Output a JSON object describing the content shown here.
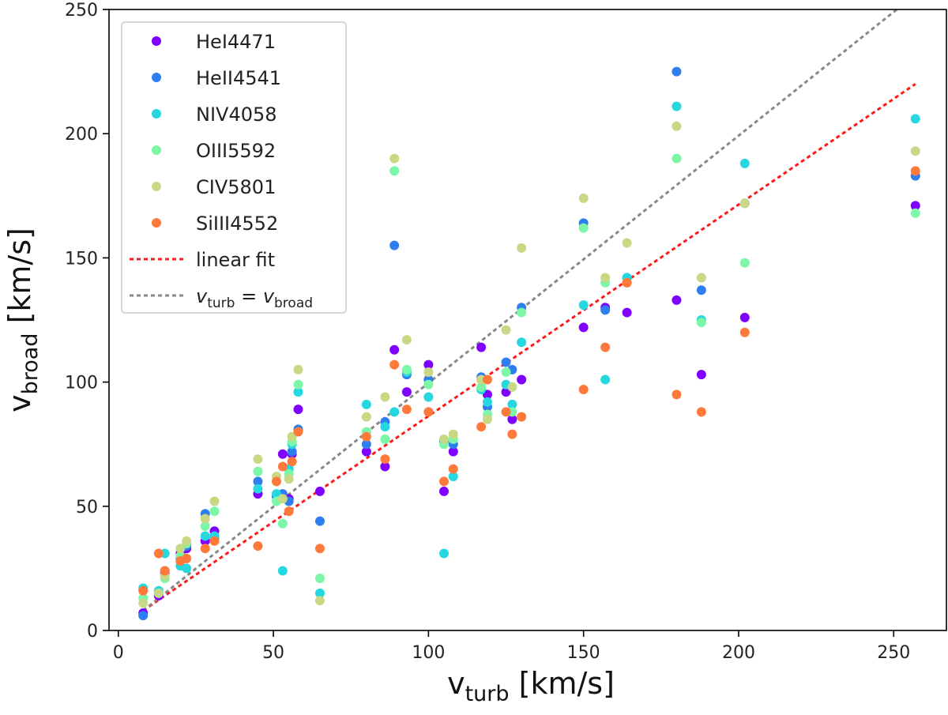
{
  "chart_data": {
    "type": "scatter",
    "xlabel": {
      "base": "v",
      "sub": "turb",
      "unit": " [km/s]"
    },
    "ylabel": {
      "base": "v",
      "sub": "broad",
      "unit": " [km/s]"
    },
    "xlim": [
      -3,
      267
    ],
    "ylim": [
      0,
      250
    ],
    "xticks": [
      0,
      50,
      100,
      150,
      200,
      250
    ],
    "yticks": [
      0,
      50,
      100,
      150,
      200,
      250
    ],
    "x": [
      8,
      13,
      15,
      20,
      22,
      28,
      31,
      45,
      51,
      53,
      55,
      56,
      58,
      65,
      80,
      86,
      89,
      93,
      100,
      105,
      108,
      117,
      119,
      125,
      127,
      130,
      150,
      157,
      164,
      180,
      188,
      202,
      257
    ],
    "series": [
      {
        "name": "HeI4471",
        "color": "#7f00ff",
        "values": [
          7,
          14,
          23,
          31,
          33,
          36,
          40,
          55,
          54,
          71,
          53,
          71,
          89,
          56,
          72,
          66,
          113,
          96,
          107,
          56,
          72,
          114,
          95,
          96,
          85,
          101,
          122,
          130,
          128,
          133,
          103,
          126,
          171
        ]
      },
      {
        "name": "HeII4541",
        "color": "#2f7ef0",
        "values": [
          6,
          15,
          24,
          29,
          34,
          47,
          37,
          60,
          54,
          55,
          52,
          72,
          81,
          44,
          75,
          84,
          155,
          103,
          101,
          76,
          75,
          102,
          90,
          108,
          105,
          130,
          164,
          129,
          142,
          225,
          137,
          172,
          183
        ]
      },
      {
        "name": "NIV4058",
        "color": "#25d8e0",
        "values": [
          17,
          16,
          31,
          26,
          25,
          38,
          38,
          57,
          55,
          24,
          65,
          75,
          96,
          15,
          91,
          82,
          88,
          104,
          94,
          31,
          62,
          97,
          92,
          99,
          91,
          116,
          131,
          101,
          142,
          211,
          125,
          188,
          206
        ]
      },
      {
        "name": "OIII5592",
        "color": "#7cf7a7",
        "values": [
          13,
          15,
          21,
          30,
          35,
          42,
          48,
          64,
          52,
          43,
          63,
          76,
          99,
          21,
          80,
          77,
          185,
          105,
          99,
          75,
          77,
          98,
          87,
          104,
          88,
          128,
          162,
          140,
          140,
          190,
          124,
          148,
          168
        ]
      },
      {
        "name": "CIV5801",
        "color": "#c8d884",
        "values": [
          11,
          15,
          22,
          33,
          36,
          45,
          52,
          69,
          62,
          53,
          61,
          78,
          105,
          12,
          86,
          94,
          190,
          117,
          104,
          77,
          79,
          101,
          85,
          121,
          98,
          154,
          174,
          142,
          156,
          203,
          142,
          172,
          193
        ]
      },
      {
        "name": "SiIII4552",
        "color": "#ff7a3a",
        "values": [
          16,
          31,
          24,
          28,
          29,
          33,
          36,
          34,
          60,
          66,
          48,
          68,
          80,
          33,
          78,
          69,
          107,
          89,
          88,
          60,
          65,
          82,
          101,
          88,
          79,
          86,
          97,
          114,
          140,
          95,
          88,
          120,
          185
        ]
      }
    ],
    "lines": [
      {
        "name": "linear fit",
        "color": "#ff1a1a",
        "points": [
          [
            8,
            8
          ],
          [
            257,
            220
          ]
        ]
      },
      {
        "name": "v_turb = v_broad",
        "color": "#888888",
        "points": [
          [
            8,
            8
          ],
          [
            251,
            250
          ]
        ]
      }
    ],
    "legend": {
      "position": "top-left",
      "fit_label": "linear fit",
      "identity_label": {
        "lhs_base": "v",
        "lhs_sub": "turb",
        "eq": " = ",
        "rhs_base": "v",
        "rhs_sub": "broad"
      }
    },
    "grid": false
  }
}
